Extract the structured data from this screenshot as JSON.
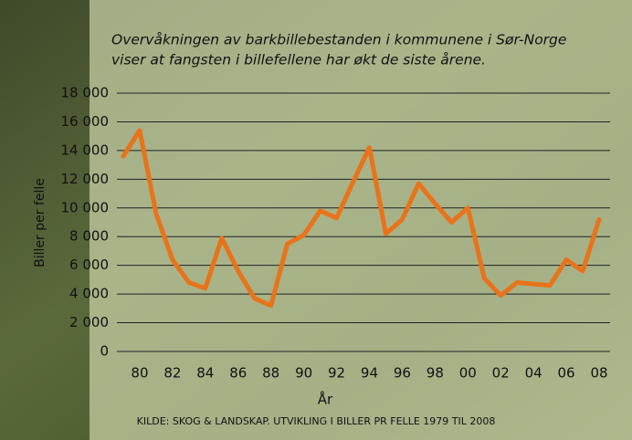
{
  "chart_data": {
    "type": "line",
    "title": [
      "Overvåkningen av barkbillebestanden i kommunene i Sør-Norge",
      "viser at fangsten i billefellene har økt de siste årene."
    ],
    "x_label": "År",
    "y_label": "Biller per felle",
    "source": "KILDE: SKOG & LANDSKAP. UTVIKLING I BILLER PR FELLE 1979 TIL 2008",
    "categories": [
      null,
      "80",
      null,
      "82",
      null,
      "84",
      null,
      "86",
      null,
      "88",
      null,
      "90",
      null,
      "92",
      null,
      "94",
      null,
      "96",
      null,
      "98",
      null,
      "00",
      null,
      "02",
      null,
      "04",
      null,
      "06",
      null,
      "08"
    ],
    "series": [
      {
        "name": "Biller per felle",
        "color": "#e8731a",
        "values": [
          13600,
          15400,
          9600,
          6400,
          4800,
          4400,
          7900,
          5600,
          3700,
          3200,
          7500,
          8100,
          9800,
          9300,
          11800,
          14200,
          8200,
          9200,
          11700,
          10300,
          9000,
          10000,
          5100,
          3900,
          4800,
          4700,
          4600,
          6400,
          5600,
          9200
        ]
      }
    ],
    "ylim": [
      0,
      18000
    ],
    "yticks": [
      0,
      {
        "value": 2000,
        "label": "2 000"
      },
      {
        "value": 4000,
        "label": "4 000"
      },
      {
        "value": 6000,
        "label": "6 000"
      },
      {
        "value": 8000,
        "label": "8 000"
      },
      {
        "value": 10000,
        "label": "10 000"
      },
      {
        "value": 12000,
        "label": "12 000"
      },
      {
        "value": 14000,
        "label": "14 000"
      },
      {
        "value": 16000,
        "label": "16 000"
      },
      {
        "value": 18000,
        "label": "18 000"
      }
    ],
    "grid": true
  }
}
